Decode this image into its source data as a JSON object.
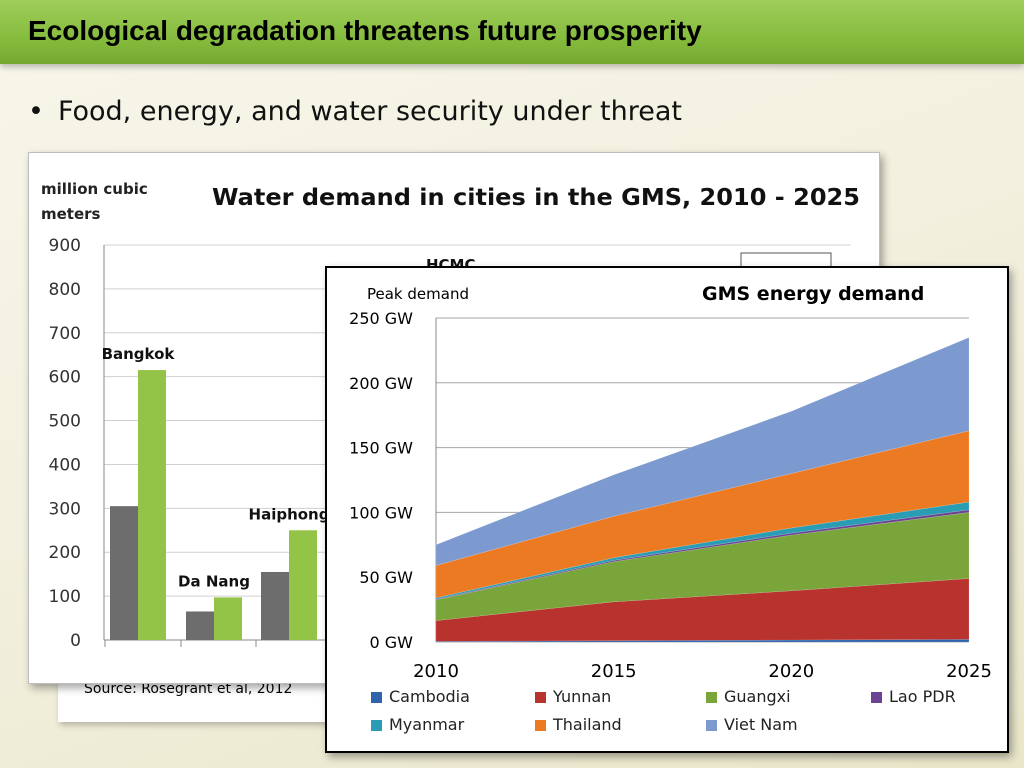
{
  "slide": {
    "title": "Ecological degradation threatens future prosperity",
    "bullet": "Food, energy, and water security under threat",
    "source": "Source: Rosegrant et al, 2012"
  },
  "chart_data": [
    {
      "type": "bar",
      "title": "Water demand in cities in the GMS, 2010 - 2025",
      "ylabel": "million cubic meters",
      "ylim": [
        0,
        900
      ],
      "yticks": [
        0,
        100,
        200,
        300,
        400,
        500,
        600,
        700,
        800,
        900
      ],
      "categories": [
        "Bangkok",
        "Da Nang",
        "Haiphong"
      ],
      "partially_visible_label": "HCMC",
      "series": [
        {
          "values": [
            305,
            65,
            155
          ],
          "color": "#6d6d6d"
        },
        {
          "values": [
            615,
            97,
            250
          ],
          "color": "#93c347"
        }
      ],
      "grid": true
    },
    {
      "type": "area",
      "title": "GMS energy demand",
      "ylabel": "Peak demand",
      "x": [
        2010,
        2015,
        2020,
        2025
      ],
      "ylim": [
        0,
        250
      ],
      "yticks": [
        0,
        50,
        100,
        150,
        200,
        250
      ],
      "ytick_labels": [
        "0 GW",
        "50 GW",
        "100 GW",
        "150 GW",
        "200 GW",
        "250 GW"
      ],
      "stacked": true,
      "legend_position": "bottom",
      "series": [
        {
          "name": "Cambodia",
          "values": [
            0.5,
            1,
            1.5,
            2
          ],
          "color": "#2f63ad"
        },
        {
          "name": "Yunnan",
          "values": [
            16,
            30,
            38,
            47
          ],
          "color": "#b8322e"
        },
        {
          "name": "Guangxi",
          "values": [
            16,
            31,
            43,
            51
          ],
          "color": "#79a53a"
        },
        {
          "name": "Lao PDR",
          "values": [
            0.5,
            1,
            1.5,
            2
          ],
          "color": "#6a4493"
        },
        {
          "name": "Myanmar",
          "values": [
            1,
            2,
            4,
            6
          ],
          "color": "#2a9db4"
        },
        {
          "name": "Thailand",
          "values": [
            25,
            32,
            42,
            55
          ],
          "color": "#ec7a22"
        },
        {
          "name": "Viet Nam",
          "values": [
            16,
            32,
            48,
            72
          ],
          "color": "#7d9ad0"
        }
      ],
      "grid": true
    }
  ]
}
